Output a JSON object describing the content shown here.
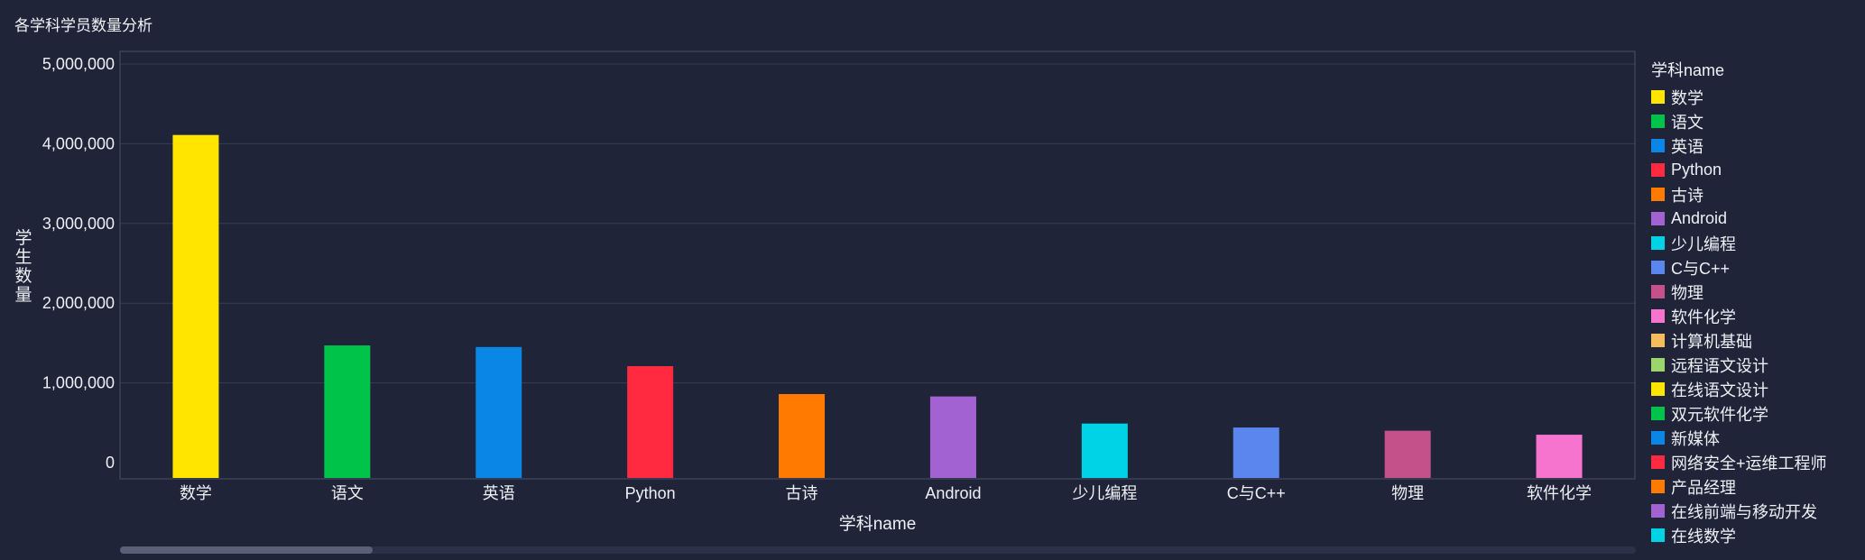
{
  "title": "各学科学员数量分析",
  "chart_data": {
    "type": "bar",
    "title": "各学科学员数量分析",
    "xlabel": "学科name",
    "ylabel": "学生数量",
    "ylim": [
      0,
      5000000
    ],
    "yticks": [
      0,
      1000000,
      2000000,
      3000000,
      4000000,
      5000000
    ],
    "ytick_labels": [
      "0",
      "1,000,000",
      "2,000,000",
      "3,000,000",
      "4,000,000",
      "5,000,000"
    ],
    "grid": true,
    "legend_position": "right",
    "categories": [
      "数学",
      "语文",
      "英语",
      "Python",
      "古诗",
      "Android",
      "少儿编程",
      "C与C++",
      "物理",
      "软件化学"
    ],
    "values": [
      4110000,
      1470000,
      1450000,
      1210000,
      860000,
      830000,
      490000,
      440000,
      400000,
      350000
    ],
    "colors": [
      "#ffe500",
      "#00c34a",
      "#0a86e6",
      "#ff2a3f",
      "#ff7a00",
      "#a262d1",
      "#00d3e6",
      "#5b86ee",
      "#c4518a",
      "#f774ce"
    ]
  },
  "legend": {
    "title": "学科name",
    "items": [
      {
        "label": "数学",
        "color": "#ffe500"
      },
      {
        "label": "语文",
        "color": "#00c34a"
      },
      {
        "label": "英语",
        "color": "#0a86e6"
      },
      {
        "label": "Python",
        "color": "#ff2a3f"
      },
      {
        "label": "古诗",
        "color": "#ff7a00"
      },
      {
        "label": "Android",
        "color": "#a262d1"
      },
      {
        "label": "少儿编程",
        "color": "#00d3e6"
      },
      {
        "label": "C与C++",
        "color": "#5b86ee"
      },
      {
        "label": "物理",
        "color": "#c4518a"
      },
      {
        "label": "软件化学",
        "color": "#f774ce"
      },
      {
        "label": "计算机基础",
        "color": "#f6bb5a"
      },
      {
        "label": "远程语文设计",
        "color": "#9bd56c"
      },
      {
        "label": "在线语文设计",
        "color": "#ffe500"
      },
      {
        "label": "双元软件化学",
        "color": "#00c34a"
      },
      {
        "label": "新媒体",
        "color": "#0a86e6"
      },
      {
        "label": "网络安全+运维工程师",
        "color": "#ff2a3f"
      },
      {
        "label": "产品经理",
        "color": "#ff7a00"
      },
      {
        "label": "在线前端与移动开发",
        "color": "#a262d1"
      },
      {
        "label": "在线数学",
        "color": "#00d3e6"
      }
    ]
  }
}
